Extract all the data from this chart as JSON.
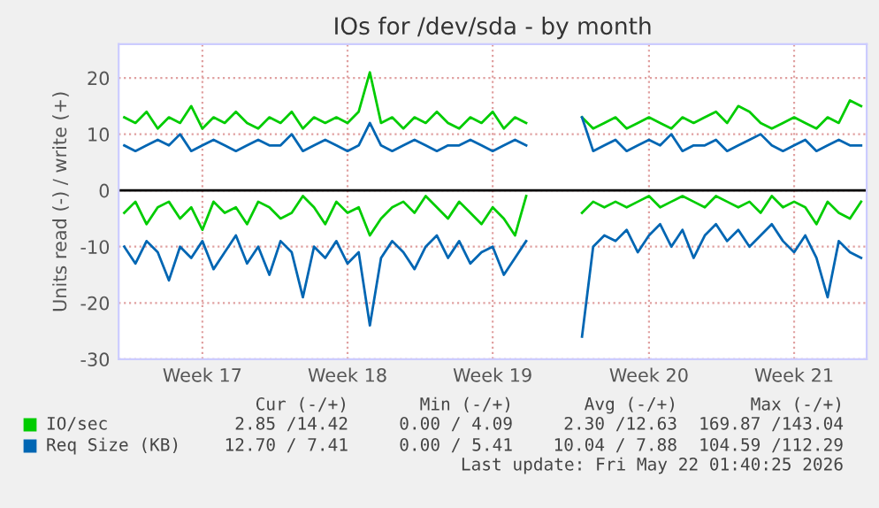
{
  "chart_data": {
    "type": "line",
    "title": "IOs for /dev/sda - by month",
    "ylabel": "Units read (-) / write (+)",
    "categories": [
      null,
      null,
      null,
      null,
      null,
      null,
      null,
      "Week 17",
      null,
      null,
      null,
      null,
      null,
      null,
      null,
      null,
      null,
      null,
      null,
      null,
      "Week 18",
      null,
      null,
      null,
      null,
      null,
      null,
      null,
      null,
      null,
      null,
      null,
      null,
      "Week 19",
      null,
      null,
      null,
      null,
      null,
      null,
      null,
      null,
      null,
      null,
      null,
      null,
      null,
      "Week 20",
      null,
      null,
      null,
      null,
      null,
      null,
      null,
      null,
      null,
      null,
      null,
      null,
      "Week 21",
      null,
      null,
      null,
      null,
      null,
      null
    ],
    "series": [
      {
        "name": "IO/sec",
        "color": "#00cc00",
        "values": [
          13,
          12,
          14,
          11,
          13,
          12,
          15,
          11,
          13,
          12,
          14,
          12,
          11,
          13,
          12,
          14,
          11,
          13,
          12,
          13,
          12,
          14,
          21,
          12,
          13,
          11,
          13,
          12,
          14,
          12,
          11,
          13,
          12,
          14,
          11,
          13,
          12,
          null,
          null,
          null,
          null,
          13,
          11,
          12,
          13,
          11,
          12,
          13,
          12,
          11,
          13,
          12,
          13,
          14,
          12,
          15,
          14,
          12,
          11,
          12,
          13,
          12,
          11,
          13,
          12,
          16,
          15
        ]
      },
      {
        "name": "Req Size (KB)",
        "color": "#0066b3",
        "values": [
          8,
          7,
          8,
          9,
          8,
          10,
          7,
          8,
          9,
          8,
          7,
          8,
          9,
          8,
          8,
          10,
          7,
          8,
          9,
          8,
          7,
          8,
          12,
          8,
          7,
          8,
          9,
          8,
          7,
          8,
          8,
          9,
          8,
          7,
          8,
          9,
          8,
          null,
          null,
          null,
          null,
          13,
          7,
          8,
          9,
          7,
          8,
          9,
          8,
          10,
          7,
          8,
          8,
          9,
          7,
          8,
          9,
          10,
          8,
          7,
          8,
          9,
          7,
          8,
          9,
          8,
          8
        ]
      },
      {
        "color": "#00cc00",
        "values": [
          -4,
          -2,
          -6,
          -3,
          -2,
          -5,
          -3,
          -7,
          -2,
          -4,
          -3,
          -6,
          -2,
          -3,
          -5,
          -4,
          -1,
          -3,
          -6,
          -2,
          -4,
          -3,
          -8,
          -5,
          -3,
          -2,
          -4,
          -1,
          -3,
          -5,
          -2,
          -4,
          -6,
          -3,
          -5,
          -8,
          -1,
          null,
          null,
          null,
          null,
          -4,
          -2,
          -3,
          -2,
          -3,
          -2,
          -1,
          -3,
          -2,
          -1,
          -2,
          -3,
          -1,
          -2,
          -3,
          -2,
          -4,
          -1,
          -3,
          -2,
          -3,
          -6,
          -2,
          -4,
          -5,
          -2
        ]
      },
      {
        "color": "#0066b3",
        "values": [
          -10,
          -13,
          -9,
          -11,
          -16,
          -10,
          -12,
          -9,
          -14,
          -11,
          -8,
          -13,
          -10,
          -15,
          -9,
          -11,
          -19,
          -10,
          -12,
          -9,
          -13,
          -11,
          -24,
          -12,
          -9,
          -11,
          -14,
          -10,
          -8,
          -12,
          -9,
          -13,
          -11,
          -10,
          -15,
          -12,
          -9,
          null,
          null,
          null,
          null,
          -26,
          -10,
          -8,
          -9,
          -7,
          -11,
          -8,
          -6,
          -10,
          -7,
          -12,
          -8,
          -6,
          -9,
          -7,
          -10,
          -8,
          -6,
          -9,
          -11,
          -8,
          -12,
          -19,
          -9,
          -11,
          -12
        ]
      }
    ],
    "ylim": [
      -30,
      26
    ],
    "yticks": [
      -30,
      -20,
      -10,
      0,
      10,
      20
    ],
    "ref_lines": [
      {
        "axis": "y",
        "value": 0,
        "color": "#000000"
      }
    ],
    "grid": true,
    "legend": "bottom",
    "marker": "none",
    "line_style": "solid",
    "annotations": [
      "Cur (-/+)",
      "Min (-/+)",
      "Avg (-/+)",
      "Max (-/+)",
      "2.85 /14.42",
      "0.00 / 4.09",
      "2.30 /12.63",
      "169.87 /143.04",
      "12.70 / 7.41",
      "0.00 / 5.41",
      "10.04 / 7.88",
      "104.59 /112.29",
      "Last update: Fri May 22 01:40:25 2026"
    ]
  }
}
